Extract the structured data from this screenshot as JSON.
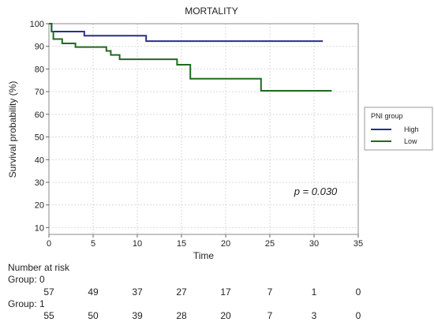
{
  "chart_data": {
    "type": "line",
    "title": "MORTALITY",
    "xlabel": "Time",
    "ylabel": "Survival probability (%)",
    "xlim": [
      0,
      35
    ],
    "ylim": [
      7,
      100
    ],
    "xticks": [
      0,
      5,
      10,
      15,
      20,
      25,
      30,
      35
    ],
    "yticks": [
      10,
      20,
      30,
      40,
      50,
      60,
      70,
      80,
      90,
      100
    ],
    "grid": true,
    "legend": {
      "title": "PNI group",
      "position": "right",
      "entries": [
        "High",
        "Low"
      ]
    },
    "annotation": "p = 0.030",
    "series": [
      {
        "name": "High",
        "color": "#2b2f8f",
        "steps": [
          [
            0,
            100
          ],
          [
            0.3,
            96.5
          ],
          [
            4,
            94.7
          ],
          [
            11,
            92.3
          ],
          [
            31,
            92.3
          ]
        ]
      },
      {
        "name": "Low",
        "color": "#1e6b1e",
        "steps": [
          [
            0,
            100
          ],
          [
            0.3,
            96.5
          ],
          [
            0.5,
            93.2
          ],
          [
            1.5,
            91.3
          ],
          [
            3,
            89.7
          ],
          [
            6.5,
            88
          ],
          [
            7,
            86.2
          ],
          [
            8,
            84.3
          ],
          [
            14.5,
            81.9
          ],
          [
            16,
            75.7
          ],
          [
            24,
            70.4
          ],
          [
            32,
            70.4
          ]
        ]
      }
    ]
  },
  "number_at_risk": {
    "header": "Number at risk",
    "times": [
      0,
      5,
      10,
      15,
      20,
      25,
      30,
      35
    ],
    "groups": [
      {
        "label": "Group: 0",
        "values": [
          "57",
          "49",
          "37",
          "27",
          "17",
          "7",
          "1",
          "0"
        ]
      },
      {
        "label": "Group: 1",
        "values": [
          "55",
          "50",
          "39",
          "28",
          "20",
          "7",
          "3",
          "0"
        ]
      }
    ]
  }
}
